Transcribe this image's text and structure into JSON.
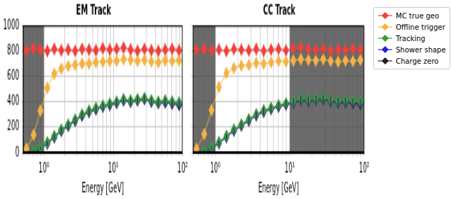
{
  "chart_data": [
    {
      "type": "line",
      "title": "EM Track",
      "x_label": "Energy [GeV]",
      "log": "x",
      "grid": true,
      "tick_labels": true,
      "xlim": [
        0.5,
        100
      ],
      "xticks": [
        {
          "value": 1,
          "label": "10⁰"
        },
        {
          "value": 10,
          "label": "10¹"
        },
        {
          "value": 100,
          "label": "10²"
        }
      ],
      "ylim": [
        0,
        1000
      ],
      "yticks": [
        0,
        200,
        400,
        600,
        800,
        1000
      ],
      "shaded_regions": [
        [
          0.5,
          1
        ]
      ],
      "x": [
        0.56,
        0.71,
        0.89,
        1.12,
        1.41,
        1.78,
        2.24,
        2.82,
        3.55,
        4.47,
        5.62,
        7.08,
        8.91,
        11.2,
        14.1,
        17.8,
        22.4,
        28.2,
        35.5,
        44.7,
        56.2,
        70.8,
        89.1
      ],
      "series": [
        {
          "name": "MC true geo",
          "color": "#f0413c",
          "marker": "diamond",
          "line_style": "solid",
          "values": [
            805,
            820,
            810,
            800,
            815,
            805,
            810,
            800,
            815,
            810,
            805,
            820,
            810,
            815,
            825,
            810,
            800,
            815,
            805,
            800,
            810,
            815,
            805
          ],
          "errors": [
            50,
            50,
            50,
            50,
            50,
            50,
            50,
            50,
            50,
            50,
            50,
            50,
            50,
            50,
            50,
            50,
            50,
            50,
            50,
            50,
            50,
            50,
            50
          ]
        },
        {
          "name": "Offline trigger",
          "color": "#f5b342",
          "marker": "diamond",
          "line_style": "solid",
          "values": [
            30,
            140,
            330,
            510,
            620,
            660,
            680,
            690,
            700,
            700,
            710,
            715,
            720,
            720,
            735,
            730,
            720,
            730,
            715,
            710,
            725,
            720,
            725
          ],
          "errors": [
            10,
            20,
            35,
            40,
            40,
            40,
            40,
            40,
            40,
            40,
            40,
            40,
            40,
            40,
            40,
            40,
            40,
            40,
            40,
            40,
            40,
            40,
            40
          ]
        },
        {
          "name": "Tracking",
          "color": "#3b9b3b",
          "marker": "diamond",
          "line_style": "solid",
          "values": [
            3,
            15,
            40,
            80,
            130,
            180,
            220,
            260,
            300,
            330,
            350,
            370,
            385,
            400,
            420,
            410,
            420,
            430,
            410,
            400,
            410,
            400,
            395
          ],
          "errors": [
            3,
            8,
            12,
            18,
            22,
            25,
            28,
            30,
            30,
            30,
            30,
            30,
            30,
            30,
            30,
            30,
            30,
            30,
            30,
            30,
            30,
            30,
            30
          ]
        },
        {
          "name": "Shower shape",
          "color": "#2323d8",
          "marker": "diamond",
          "line_style": "solid",
          "values": [
            2,
            12,
            35,
            75,
            125,
            175,
            215,
            255,
            295,
            325,
            345,
            365,
            380,
            395,
            415,
            405,
            415,
            425,
            405,
            395,
            400,
            395,
            385
          ],
          "errors": [
            2,
            8,
            12,
            18,
            22,
            25,
            28,
            30,
            30,
            30,
            30,
            30,
            30,
            30,
            30,
            30,
            30,
            30,
            30,
            30,
            30,
            30,
            30
          ]
        },
        {
          "name": "Charge zero",
          "color": "#222222",
          "marker": "diamond",
          "line_style": "solid",
          "values": [
            2,
            10,
            33,
            72,
            120,
            170,
            210,
            250,
            290,
            320,
            340,
            360,
            375,
            390,
            410,
            400,
            410,
            420,
            400,
            390,
            395,
            385,
            375
          ],
          "errors": [
            2,
            8,
            12,
            18,
            22,
            25,
            28,
            30,
            30,
            30,
            30,
            30,
            30,
            30,
            30,
            30,
            30,
            30,
            30,
            30,
            30,
            30,
            30
          ]
        }
      ]
    },
    {
      "type": "line",
      "title": "CC Track",
      "x_label": "Energy [GeV]",
      "log": "x",
      "grid": true,
      "tick_labels": "x",
      "legend": "right",
      "xlim": [
        0.5,
        100
      ],
      "xticks": [
        {
          "value": 1,
          "label": "10⁰"
        },
        {
          "value": 10,
          "label": "10¹"
        },
        {
          "value": 100,
          "label": "10²"
        }
      ],
      "ylim": [
        0,
        1000
      ],
      "yticks": [
        0,
        200,
        400,
        600,
        800,
        1000
      ],
      "shaded_regions": [
        [
          0.5,
          1
        ],
        [
          10,
          100
        ]
      ],
      "x": [
        0.56,
        0.71,
        0.89,
        1.12,
        1.41,
        1.78,
        2.24,
        2.82,
        3.55,
        4.47,
        5.62,
        7.08,
        8.91,
        11.2,
        14.1,
        17.8,
        22.4,
        28.2,
        35.5,
        44.7,
        56.2,
        70.8,
        89.1
      ],
      "series": [
        {
          "name": "MC true geo",
          "color": "#f0413c",
          "marker": "diamond",
          "line_style": "solid",
          "values": [
            810,
            815,
            805,
            810,
            800,
            815,
            810,
            805,
            815,
            800,
            810,
            815,
            805,
            820,
            830,
            815,
            805,
            815,
            800,
            810,
            805,
            815,
            810
          ],
          "errors": [
            50,
            50,
            50,
            50,
            50,
            50,
            50,
            50,
            50,
            50,
            50,
            50,
            50,
            50,
            50,
            50,
            50,
            50,
            50,
            50,
            50,
            50,
            50
          ]
        },
        {
          "name": "Offline trigger",
          "color": "#f5b342",
          "marker": "diamond",
          "line_style": "solid",
          "values": [
            30,
            145,
            335,
            515,
            625,
            665,
            685,
            690,
            705,
            700,
            710,
            720,
            715,
            725,
            735,
            730,
            725,
            735,
            720,
            715,
            725,
            720,
            730
          ],
          "errors": [
            10,
            20,
            35,
            40,
            40,
            40,
            40,
            40,
            40,
            40,
            40,
            40,
            40,
            40,
            40,
            40,
            40,
            40,
            40,
            40,
            40,
            40,
            40
          ]
        },
        {
          "name": "Tracking",
          "color": "#3b9b3b",
          "marker": "diamond",
          "line_style": "solid",
          "values": [
            3,
            15,
            42,
            82,
            132,
            182,
            222,
            262,
            302,
            332,
            352,
            372,
            388,
            402,
            425,
            415,
            425,
            432,
            415,
            405,
            412,
            405,
            400
          ],
          "errors": [
            3,
            8,
            12,
            18,
            22,
            25,
            28,
            30,
            30,
            30,
            30,
            30,
            30,
            30,
            30,
            30,
            30,
            30,
            30,
            30,
            30,
            30,
            30
          ]
        },
        {
          "name": "Shower shape",
          "color": "#2323d8",
          "marker": "diamond",
          "line_style": "solid",
          "values": [
            2,
            12,
            37,
            77,
            127,
            177,
            217,
            257,
            297,
            327,
            347,
            367,
            383,
            397,
            420,
            410,
            420,
            427,
            410,
            400,
            405,
            398,
            392
          ],
          "errors": [
            2,
            8,
            12,
            18,
            22,
            25,
            28,
            30,
            30,
            30,
            30,
            30,
            30,
            30,
            30,
            30,
            30,
            30,
            30,
            30,
            30,
            30,
            30
          ]
        },
        {
          "name": "Charge zero",
          "color": "#222222",
          "marker": "diamond",
          "line_style": "solid",
          "values": [
            2,
            10,
            35,
            74,
            122,
            172,
            212,
            252,
            292,
            322,
            342,
            362,
            378,
            392,
            415,
            405,
            415,
            422,
            405,
            395,
            398,
            390,
            382
          ],
          "errors": [
            2,
            8,
            12,
            18,
            22,
            25,
            28,
            30,
            30,
            30,
            30,
            30,
            30,
            30,
            30,
            30,
            30,
            30,
            30,
            30,
            30,
            30,
            30
          ]
        }
      ]
    }
  ]
}
